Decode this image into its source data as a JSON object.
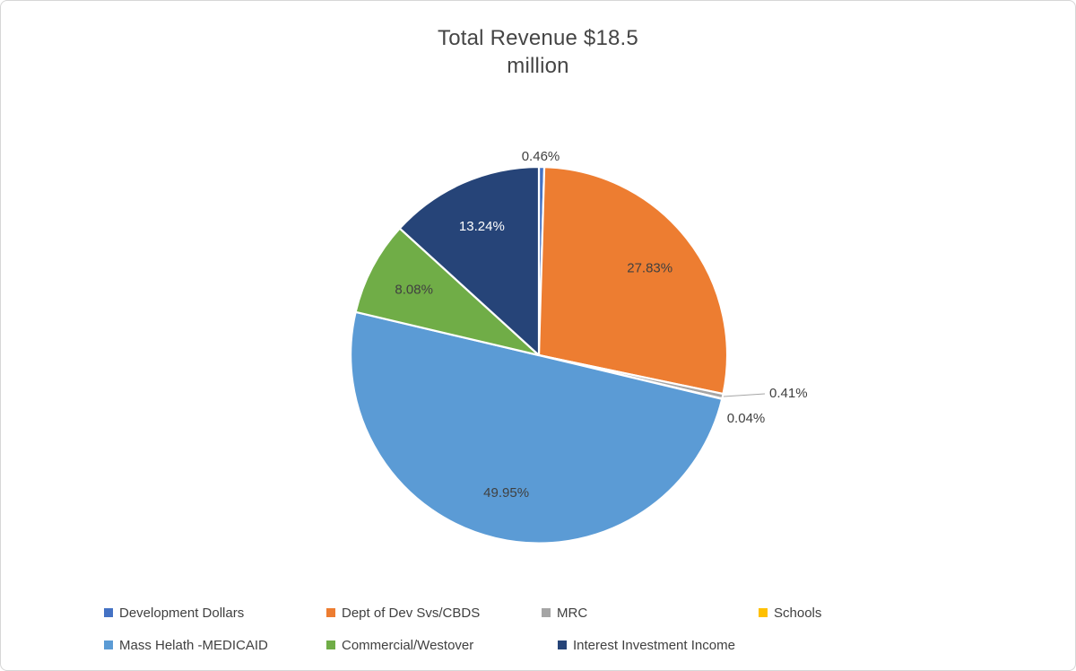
{
  "chart_data": {
    "type": "pie",
    "title_lines": [
      "Total Revenue $18.5",
      "million"
    ],
    "title": "Total Revenue $18.5 million",
    "labels": [
      "Development Dollars",
      "Dept of Dev Svs/CBDS",
      "MRC",
      "Schools",
      "Mass Helath -MEDICAID",
      "Commercial/Westover",
      "Interest Investment Income"
    ],
    "values": [
      0.46,
      27.83,
      0.41,
      0.04,
      49.95,
      8.08,
      13.24
    ],
    "value_labels": [
      "0.46%",
      "27.83%",
      "0.41%",
      "0.04%",
      "49.95%",
      "8.08%",
      "13.24%"
    ],
    "colors": [
      "#4472C4",
      "#ED7D31",
      "#A5A5A5",
      "#FFC000",
      "#5B9BD5",
      "#70AD47",
      "#264478"
    ],
    "value_label_colors": [
      "#404040",
      "#404040",
      "#404040",
      "#404040",
      "#404040",
      "#404040",
      "#FFFFFF"
    ],
    "legend_position": "bottom",
    "legend_row_split": [
      4,
      3
    ],
    "start_angle_deg": 0,
    "direction": "clockwise",
    "units": "percent"
  }
}
